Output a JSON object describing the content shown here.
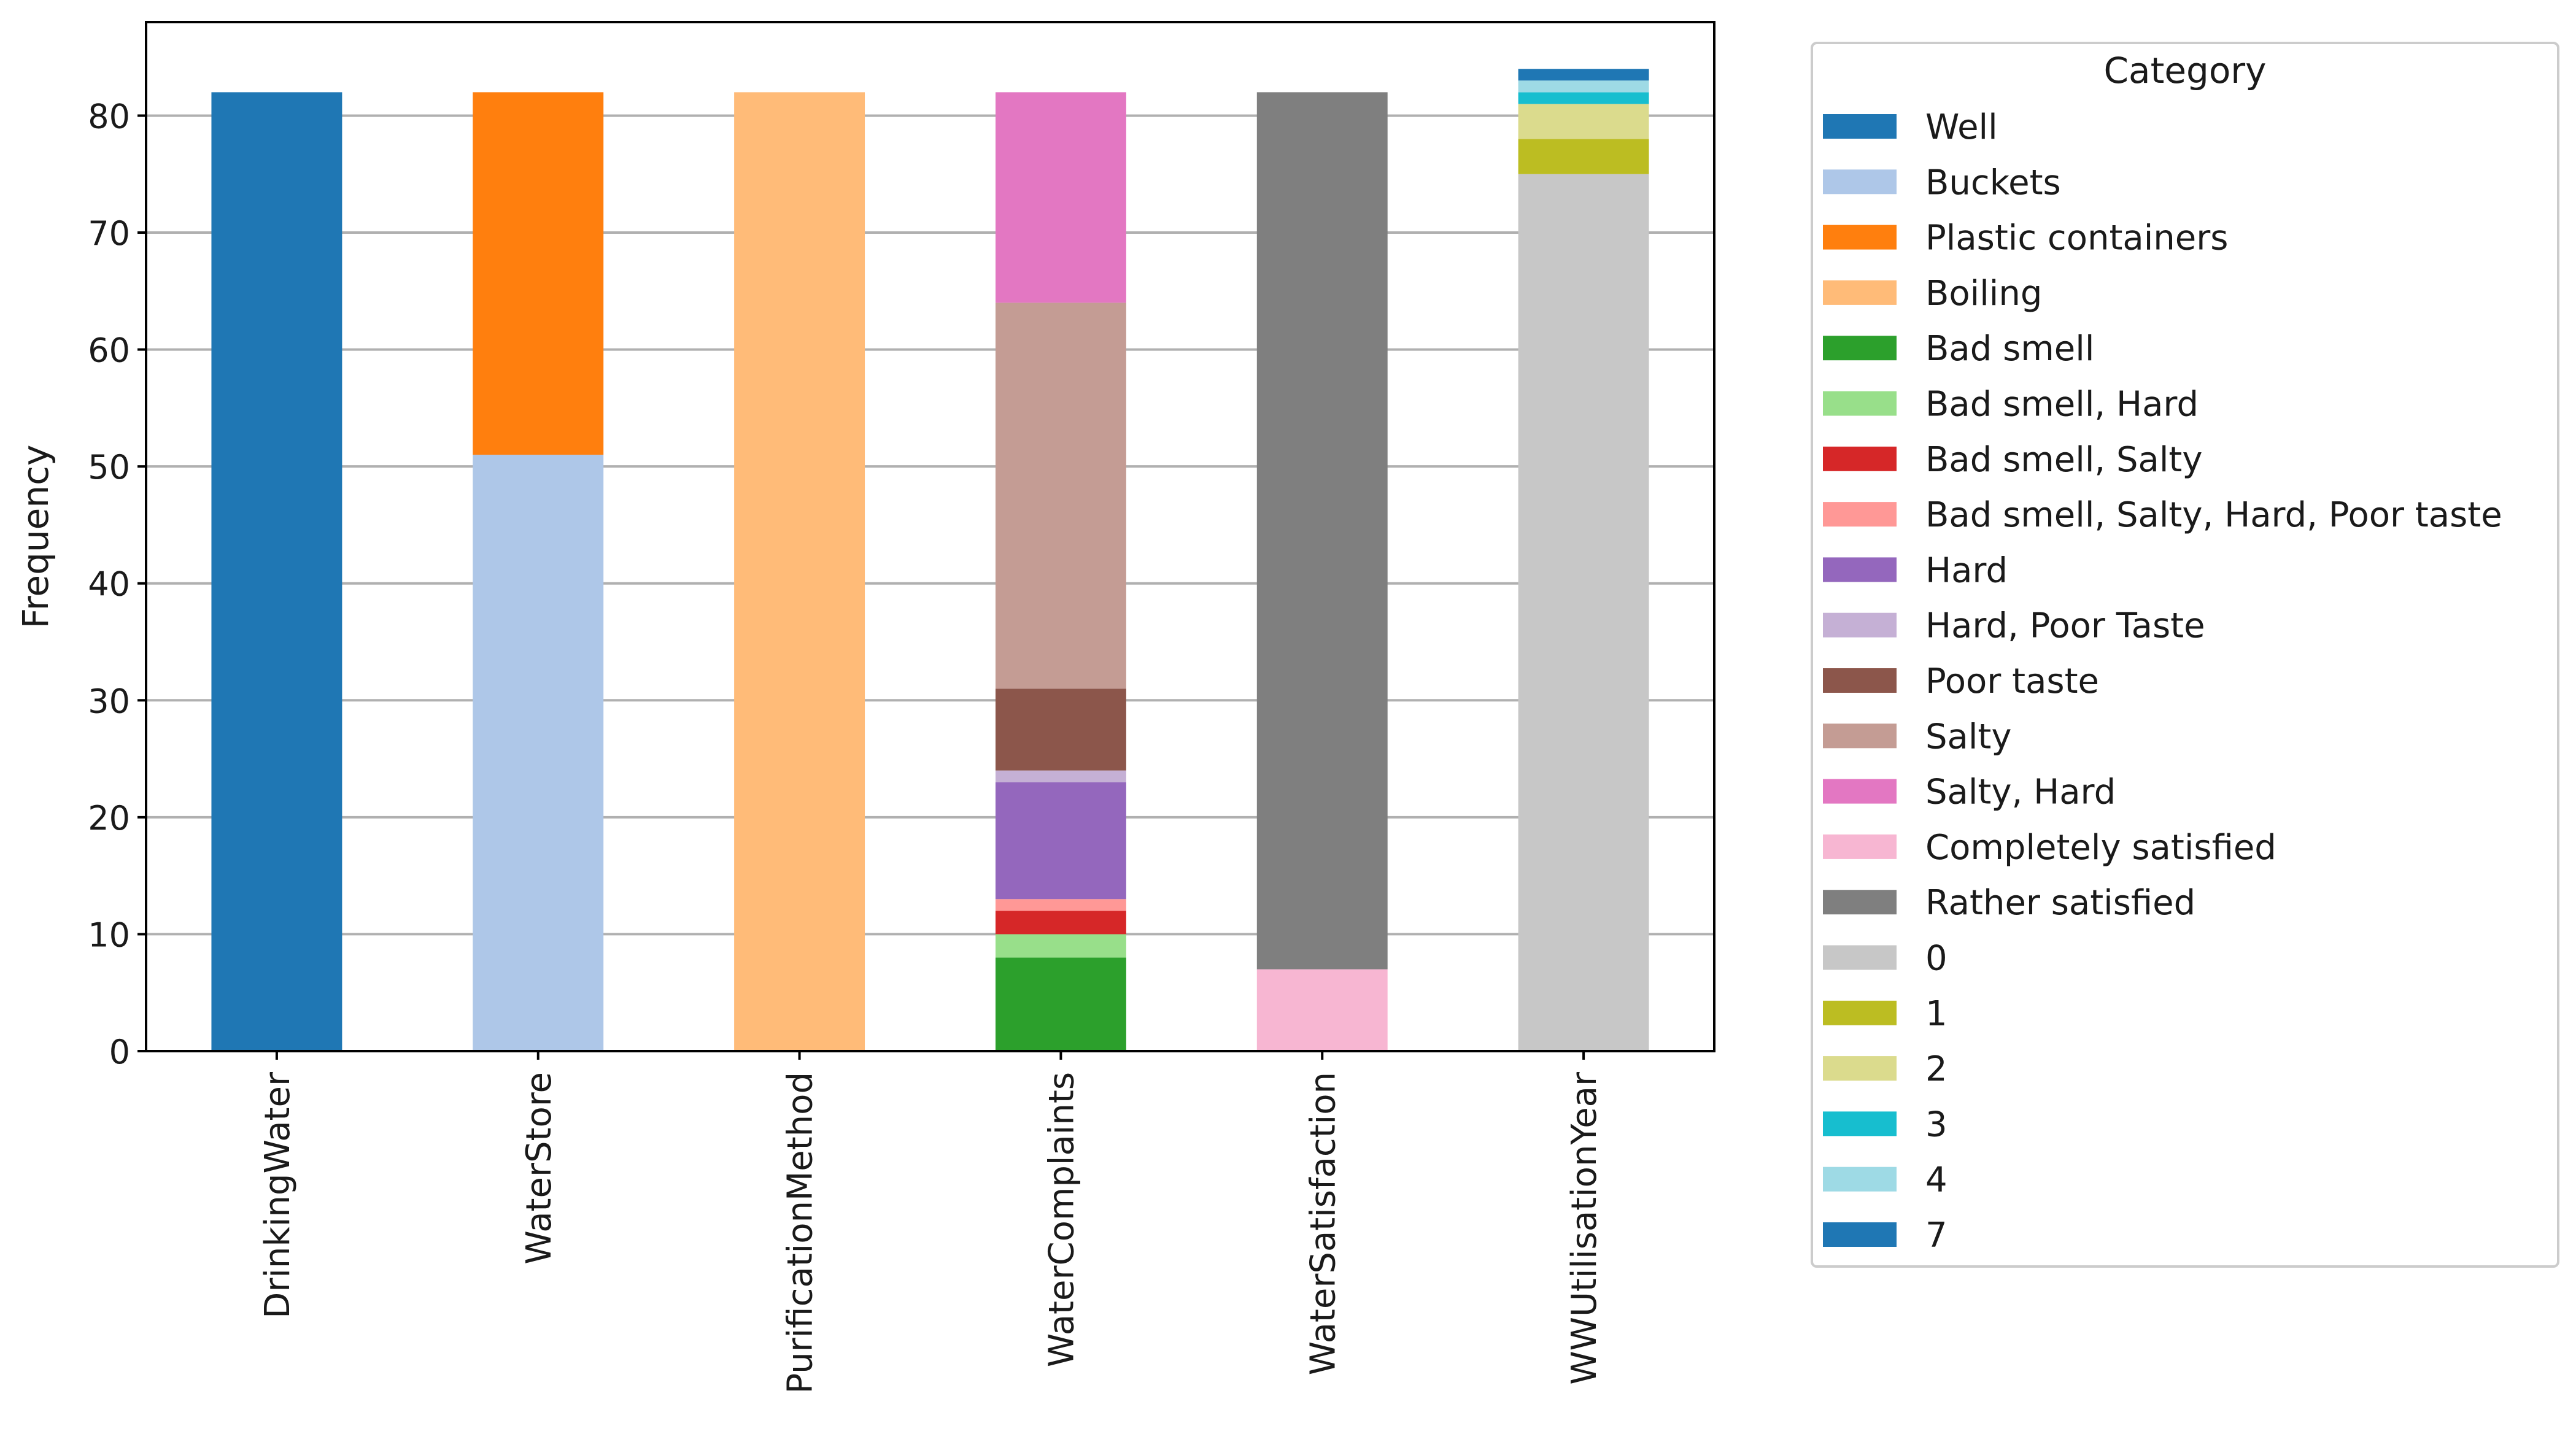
{
  "chart_data": {
    "type": "bar",
    "stacked": true,
    "title": "",
    "xlabel": "",
    "ylabel": "Frequency",
    "ylim": [
      0,
      88
    ],
    "yticks": [
      0,
      10,
      20,
      30,
      40,
      50,
      60,
      70,
      80
    ],
    "grid": "horizontal",
    "categories": [
      "DrinkingWater",
      "WaterStore",
      "PurificationMethod",
      "WaterComplaints",
      "WaterSatisfaction",
      "WWUtilisationYear"
    ],
    "legend": {
      "title": "Category",
      "placement": "outside-right"
    },
    "series": [
      {
        "name": "Well",
        "color": "#1f77b4",
        "values": [
          82,
          0,
          0,
          0,
          0,
          0
        ]
      },
      {
        "name": "Buckets",
        "color": "#aec7e8",
        "values": [
          0,
          51,
          0,
          0,
          0,
          0
        ]
      },
      {
        "name": "Plastic containers",
        "color": "#ff7f0e",
        "values": [
          0,
          31,
          0,
          0,
          0,
          0
        ]
      },
      {
        "name": "Boiling",
        "color": "#ffbb78",
        "values": [
          0,
          0,
          82,
          0,
          0,
          0
        ]
      },
      {
        "name": "Bad smell",
        "color": "#2ca02c",
        "values": [
          0,
          0,
          0,
          8,
          0,
          0
        ]
      },
      {
        "name": "Bad smell, Hard",
        "color": "#98df8a",
        "values": [
          0,
          0,
          0,
          2,
          0,
          0
        ]
      },
      {
        "name": "Bad smell, Salty",
        "color": "#d62728",
        "values": [
          0,
          0,
          0,
          2,
          0,
          0
        ]
      },
      {
        "name": "Bad smell, Salty, Hard, Poor taste",
        "color": "#ff9896",
        "values": [
          0,
          0,
          0,
          1,
          0,
          0
        ]
      },
      {
        "name": "Hard",
        "color": "#9467bd",
        "values": [
          0,
          0,
          0,
          10,
          0,
          0
        ]
      },
      {
        "name": "Hard, Poor Taste",
        "color": "#c5b0d5",
        "values": [
          0,
          0,
          0,
          1,
          0,
          0
        ]
      },
      {
        "name": "Poor taste",
        "color": "#8c564b",
        "values": [
          0,
          0,
          0,
          7,
          0,
          0
        ]
      },
      {
        "name": "Salty",
        "color": "#c49c94",
        "values": [
          0,
          0,
          0,
          33,
          0,
          0
        ]
      },
      {
        "name": "Salty, Hard",
        "color": "#e377c2",
        "values": [
          0,
          0,
          0,
          18,
          0,
          0
        ]
      },
      {
        "name": "Completely satisfied",
        "color": "#f7b6d2",
        "values": [
          0,
          0,
          0,
          0,
          7,
          0
        ]
      },
      {
        "name": "Rather satisfied",
        "color": "#7f7f7f",
        "values": [
          0,
          0,
          0,
          0,
          75,
          0
        ]
      },
      {
        "name": "0",
        "color": "#c7c7c7",
        "values": [
          0,
          0,
          0,
          0,
          0,
          75
        ]
      },
      {
        "name": "1",
        "color": "#bcbd22",
        "values": [
          0,
          0,
          0,
          0,
          0,
          3
        ]
      },
      {
        "name": "2",
        "color": "#dbdb8d",
        "values": [
          0,
          0,
          0,
          0,
          0,
          3
        ]
      },
      {
        "name": "3",
        "color": "#17becf",
        "values": [
          0,
          0,
          0,
          0,
          0,
          1
        ]
      },
      {
        "name": "4",
        "color": "#9edae5",
        "values": [
          0,
          0,
          0,
          0,
          0,
          1
        ]
      },
      {
        "name": "7",
        "color": "#1f77b4",
        "values": [
          0,
          0,
          0,
          0,
          0,
          1
        ]
      }
    ]
  }
}
